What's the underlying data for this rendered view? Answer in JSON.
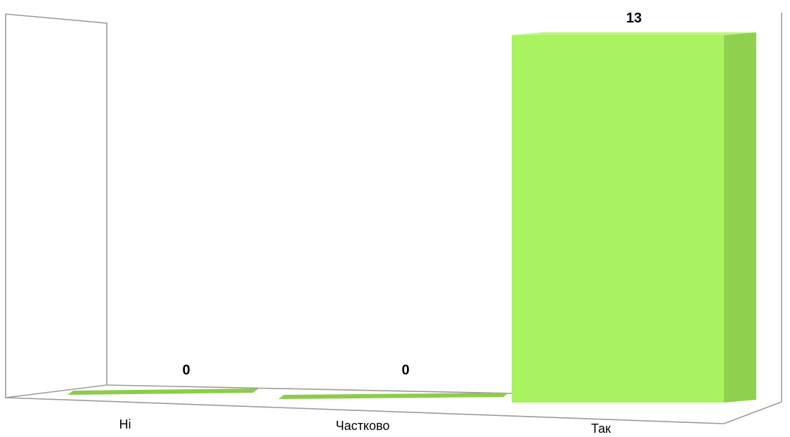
{
  "chart_data": {
    "type": "bar",
    "categories": [
      "Ні",
      "Частково",
      "Так"
    ],
    "values": [
      0,
      0,
      13
    ],
    "data_labels": [
      "0",
      "0",
      "13"
    ],
    "title": "",
    "xlabel": "",
    "ylabel": "",
    "ylim": [
      0,
      13
    ],
    "grid": false,
    "legend": "none",
    "three_d": true,
    "colors": {
      "bar_front": "#a9f260",
      "bar_side": "#8fd14f",
      "bar_top": "#bdf57d",
      "bar_flat": "#8ccc4a",
      "wall": "#9a9a9a"
    }
  }
}
